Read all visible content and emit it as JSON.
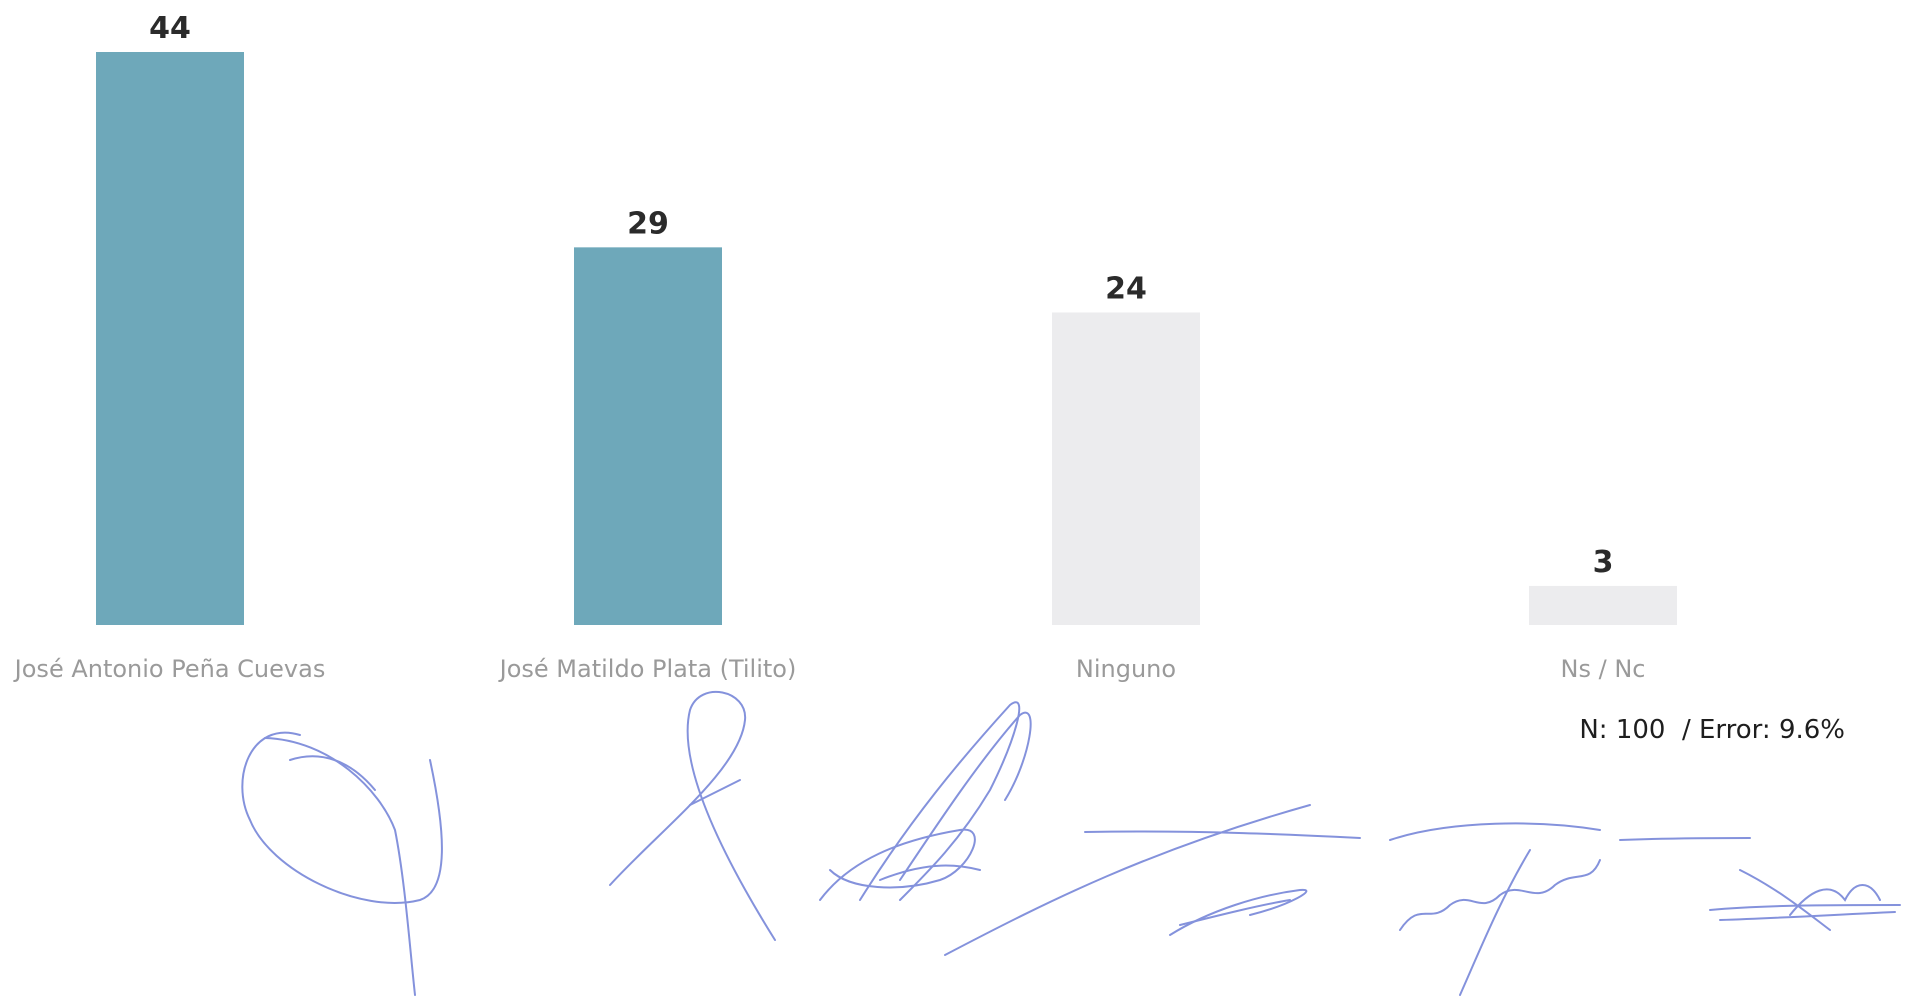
{
  "chart_data": {
    "type": "bar",
    "categories": [
      "José Antonio Peña Cuevas",
      "José Matildo Plata (Tilito)",
      "Ninguno",
      "Ns / Nc"
    ],
    "values": [
      44,
      29,
      24,
      3
    ],
    "bar_colors": [
      "#6ea8ba",
      "#6ea8ba",
      "#ececee",
      "#ececee"
    ],
    "title": "",
    "xlabel": "",
    "ylabel": "",
    "ylim": [
      0,
      44
    ],
    "grid": false,
    "legend": "none"
  },
  "footnote": "N: 100  / Error: 9.6%",
  "colors": {
    "accent": "#6ea8ba",
    "muted_bar": "#ececee",
    "signature_ink": "#6f7fd6"
  }
}
